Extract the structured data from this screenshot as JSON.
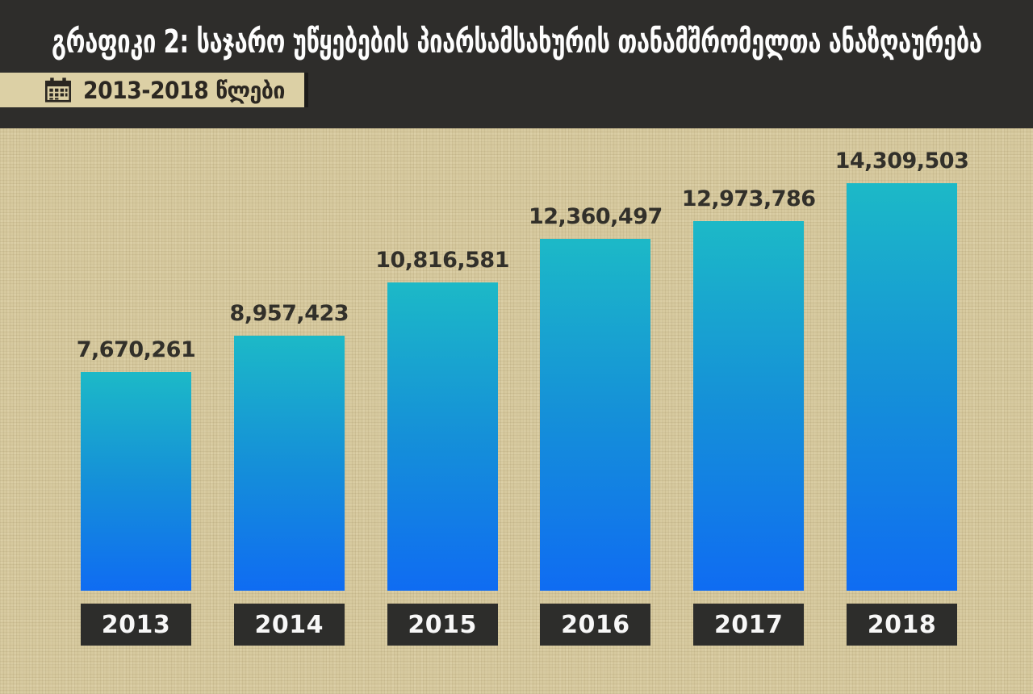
{
  "header": {
    "title": "გრაფიკი 2: საჯარო უწყებების პიარსამსახურის თანამშრომელთა ანაზღაურება",
    "period_badge": {
      "icon": "calendar-icon",
      "label": "2013-2018 წლები"
    }
  },
  "colors": {
    "header_bg": "#2e2d2b",
    "canvas_bg": "#d6c99e",
    "badge_bg": "#dcd0a5",
    "title_color": "#fdfdfd",
    "value_label_color": "#32302a",
    "year_box_bg": "#2d2d2b",
    "bar_gradient_top": "#1cb9c7",
    "bar_gradient_mid": "#1590d8",
    "bar_gradient_bottom": "#0f6cf2"
  },
  "chart_data": {
    "type": "bar",
    "title": "გრაფიკი 2: საჯარო უწყებების პიარსამსახურის თანამშრომელთა ანაზღაურება",
    "subtitle": "2013-2018 წლები",
    "categories": [
      "2013",
      "2014",
      "2015",
      "2016",
      "2017",
      "2018"
    ],
    "values": [
      7670261,
      8957423,
      10816581,
      12360497,
      12973786,
      14309503
    ],
    "value_labels": [
      "7,670,261",
      "8,957,423",
      "10,816,581",
      "12,360,497",
      "12,973,786",
      "14,309,503"
    ],
    "xlabel": "",
    "ylabel": "",
    "ylim": [
      0,
      14309503
    ],
    "grid": false,
    "legend": "none",
    "bar_labels_position": "above",
    "category_labels_style": "dark-boxes-below"
  }
}
